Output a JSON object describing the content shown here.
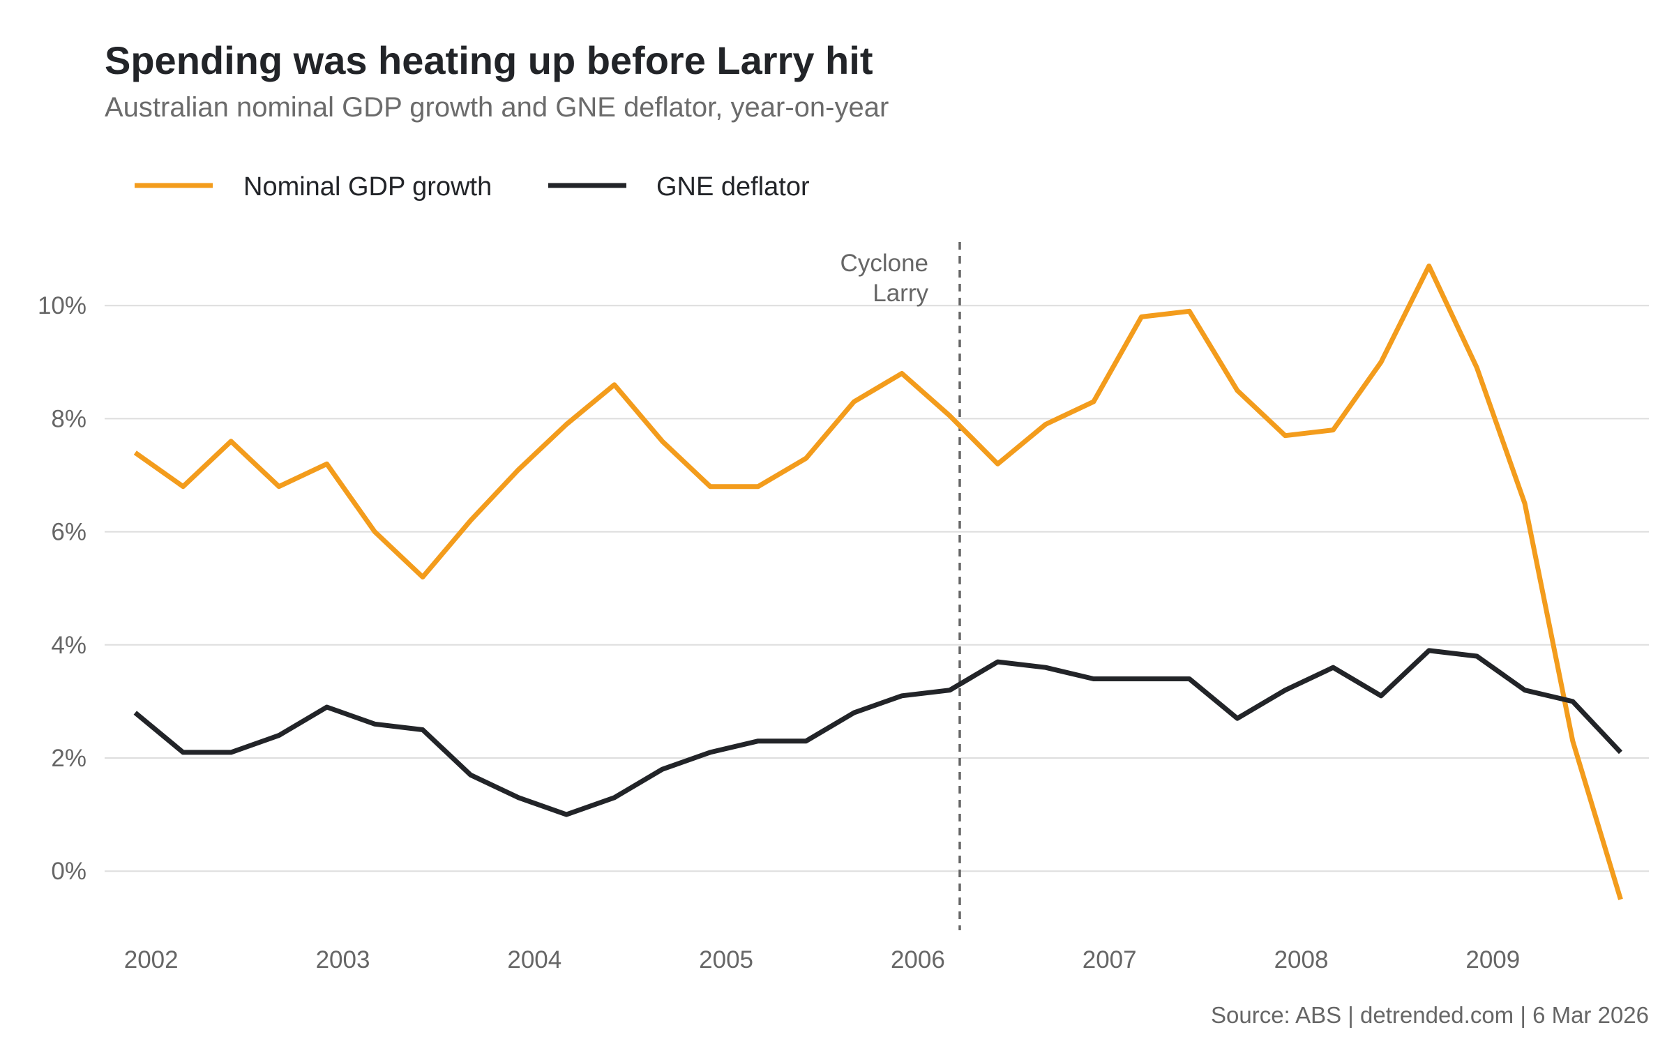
{
  "chart_data": {
    "type": "line",
    "title": "Spending was heating up before Larry hit",
    "subtitle": "Australian nominal GDP growth and GNE deflator, year-on-year",
    "source": "Source: ABS | detrended.com | 6 Mar 2026",
    "legend_position": "top-left",
    "grid": "horizontal",
    "ylim": [
      -1,
      11
    ],
    "yticks": [
      0,
      2,
      4,
      6,
      8,
      10
    ],
    "ytick_labels": [
      "0%",
      "2%",
      "4%",
      "6%",
      "8%",
      "10%"
    ],
    "xticks": [
      "2002",
      "2003",
      "2004",
      "2005",
      "2006",
      "2007",
      "2008",
      "2009"
    ],
    "x": [
      "2001-12",
      "2002-03",
      "2002-06",
      "2002-09",
      "2002-12",
      "2003-03",
      "2003-06",
      "2003-09",
      "2003-12",
      "2004-03",
      "2004-06",
      "2004-09",
      "2004-12",
      "2005-03",
      "2005-06",
      "2005-09",
      "2005-12",
      "2006-03",
      "2006-06",
      "2006-09",
      "2006-12",
      "2007-03",
      "2007-06",
      "2007-09",
      "2007-12",
      "2008-03",
      "2008-06",
      "2008-09",
      "2008-12",
      "2009-03",
      "2009-06",
      "2009-09"
    ],
    "series": [
      {
        "name": "Nominal GDP growth",
        "color": "#f39c1c",
        "values": [
          7.4,
          6.8,
          7.6,
          6.8,
          7.2,
          6.0,
          5.2,
          6.2,
          7.1,
          7.9,
          8.6,
          7.6,
          6.8,
          6.8,
          7.3,
          8.3,
          8.8,
          8.05,
          7.2,
          7.9,
          8.3,
          9.8,
          9.9,
          8.5,
          7.7,
          7.8,
          9.0,
          10.7,
          8.9,
          6.5,
          2.3,
          -0.5
        ]
      },
      {
        "name": "GNE deflator",
        "color": "#222428",
        "values": [
          2.8,
          2.1,
          2.1,
          2.4,
          2.9,
          2.6,
          2.5,
          1.7,
          1.3,
          1.0,
          1.3,
          1.8,
          2.1,
          2.3,
          2.3,
          2.8,
          3.1,
          3.2,
          3.7,
          3.6,
          3.4,
          3.4,
          3.4,
          2.7,
          3.2,
          3.6,
          3.1,
          3.9,
          3.8,
          3.2,
          3.0,
          2.1
        ]
      }
    ],
    "annotations": [
      {
        "type": "vline",
        "date": "2006-03-20",
        "label_lines": [
          "Cyclone",
          "Larry"
        ],
        "color": "#666666",
        "style": "dashed"
      }
    ]
  }
}
